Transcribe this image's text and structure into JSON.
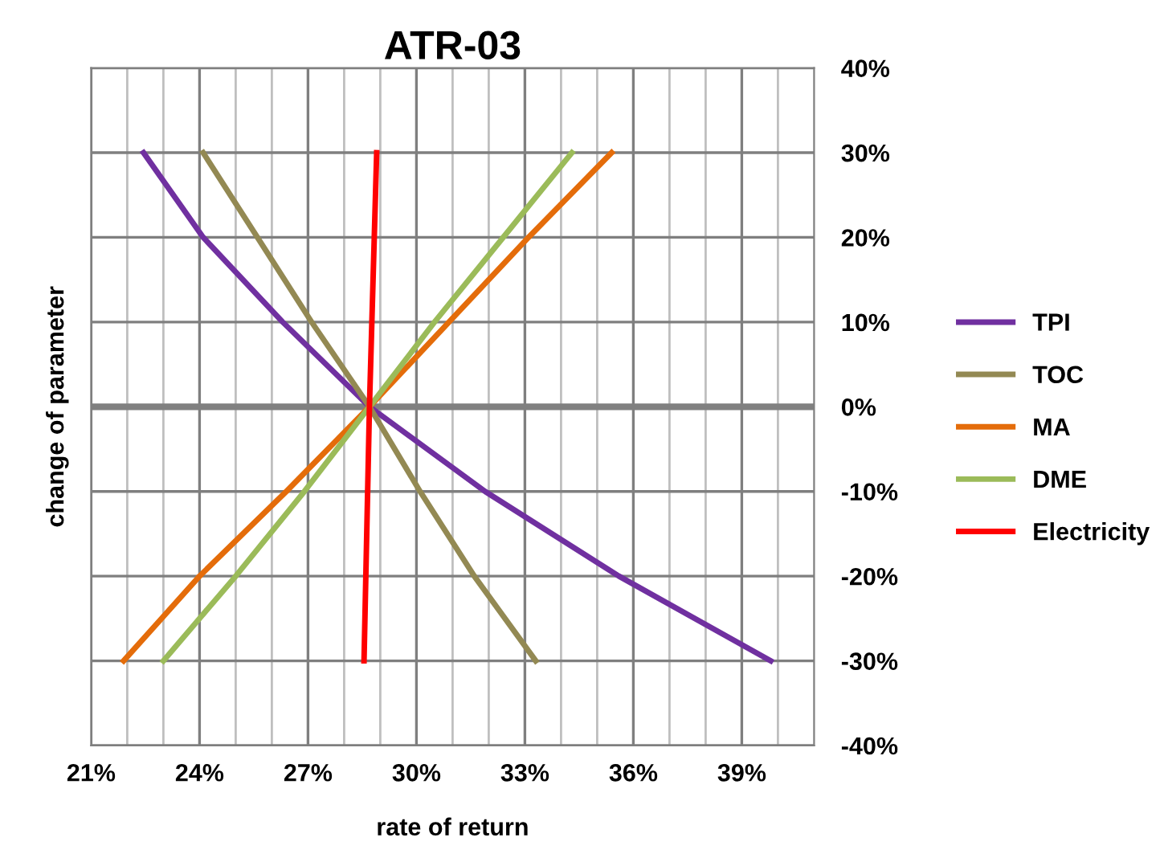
{
  "chart_data": {
    "type": "line",
    "title": "ATR-03",
    "xlabel": "rate of return",
    "ylabel": "change of parameter",
    "xlim": [
      21,
      41
    ],
    "ylim": [
      -40,
      40
    ],
    "xticks": [
      {
        "value": 21,
        "label": "21%"
      },
      {
        "value": 22,
        "label": null
      },
      {
        "value": 23,
        "label": null
      },
      {
        "value": 24,
        "label": "24%"
      },
      {
        "value": 25,
        "label": null
      },
      {
        "value": 26,
        "label": null
      },
      {
        "value": 27,
        "label": "27%"
      },
      {
        "value": 28,
        "label": null
      },
      {
        "value": 29,
        "label": null
      },
      {
        "value": 30,
        "label": "30%"
      },
      {
        "value": 31,
        "label": null
      },
      {
        "value": 32,
        "label": null
      },
      {
        "value": 33,
        "label": "33%"
      },
      {
        "value": 34,
        "label": null
      },
      {
        "value": 35,
        "label": null
      },
      {
        "value": 36,
        "label": "36%"
      },
      {
        "value": 37,
        "label": null
      },
      {
        "value": 38,
        "label": null
      },
      {
        "value": 39,
        "label": "39%"
      },
      {
        "value": 40,
        "label": null
      }
    ],
    "yticks": [
      {
        "value": -40,
        "label": "-40%"
      },
      {
        "value": -30,
        "label": "-30%"
      },
      {
        "value": -20,
        "label": "-20%"
      },
      {
        "value": -10,
        "label": "-10%"
      },
      {
        "value": 0,
        "label": "0%"
      },
      {
        "value": 10,
        "label": "10%"
      },
      {
        "value": 20,
        "label": "20%"
      },
      {
        "value": 30,
        "label": "30%"
      },
      {
        "value": 40,
        "label": "40%"
      }
    ],
    "grid": true,
    "legend": "right",
    "marker": "none",
    "line_style": "solid",
    "ref_lines": [
      {
        "axis": "y",
        "value": 0,
        "color": "#808080"
      }
    ],
    "series": [
      {
        "name": "TPI",
        "color": "#7030a0",
        "x": [
          22.45,
          24.1,
          26.3,
          28.7,
          31.9,
          35.6,
          39.8
        ],
        "values": [
          30,
          20,
          10,
          0,
          -10,
          -20,
          -30
        ]
      },
      {
        "name": "TOC",
        "color": "#938953",
        "x": [
          24.1,
          25.6,
          27.1,
          28.7,
          30.1,
          31.6,
          33.3
        ],
        "values": [
          30,
          20,
          10,
          0,
          -10,
          -20,
          -30
        ]
      },
      {
        "name": "MA",
        "color": "#e46c0a",
        "x": [
          35.4,
          33.1,
          30.9,
          28.7,
          26.4,
          24.0,
          21.9
        ],
        "values": [
          30,
          20,
          10,
          0,
          -10,
          -20,
          -30
        ]
      },
      {
        "name": "DME",
        "color": "#9bbb59",
        "x": [
          34.3,
          32.4,
          30.5,
          28.7,
          26.9,
          25.0,
          23.0
        ],
        "values": [
          30,
          20,
          10,
          0,
          -10,
          -20,
          -30
        ]
      },
      {
        "name": "Electricity",
        "color": "#ff0000",
        "x": [
          28.9,
          28.7,
          28.55
        ],
        "values": [
          30,
          0,
          -30
        ]
      }
    ]
  }
}
